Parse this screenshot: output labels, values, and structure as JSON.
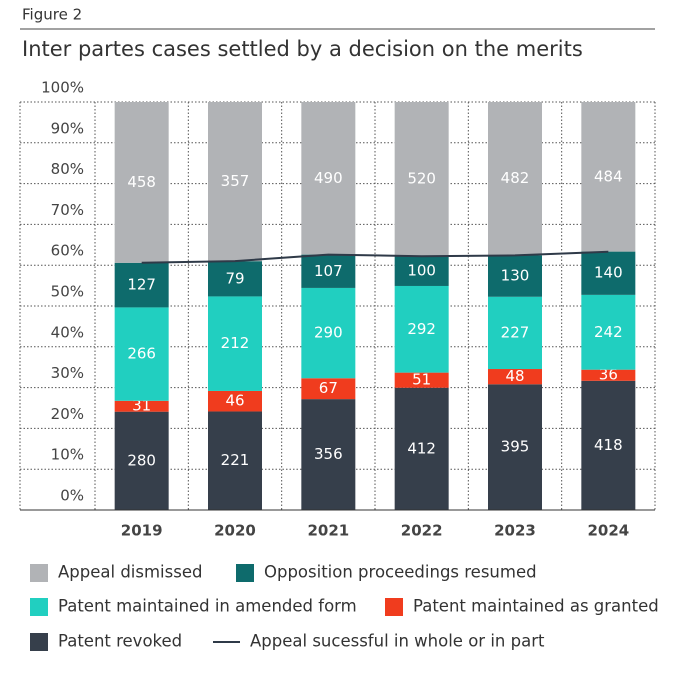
{
  "figure_label": "Figure 2",
  "chart_data": {
    "type": "bar",
    "stacking": "percent",
    "title": "Inter partes cases settled by a decision on the merits",
    "categories": [
      "2019",
      "2020",
      "2021",
      "2022",
      "2023",
      "2024"
    ],
    "series": [
      {
        "name": "Appeal dismissed",
        "color": "#b1b3b6",
        "values": [
          458,
          357,
          490,
          520,
          482,
          484
        ]
      },
      {
        "name": "Opposition proceedings resumed",
        "color": "#0e6b6c",
        "values": [
          127,
          79,
          107,
          100,
          130,
          140
        ]
      },
      {
        "name": "Patent maintained in amended form",
        "color": "#21cfc0",
        "values": [
          266,
          212,
          290,
          292,
          227,
          242
        ]
      },
      {
        "name": "Patent maintained as granted",
        "color": "#f03c1e",
        "values": [
          31,
          46,
          67,
          51,
          48,
          36
        ]
      },
      {
        "name": "Patent revoked",
        "color": "#363f4b",
        "values": [
          280,
          221,
          356,
          412,
          395,
          418
        ]
      }
    ],
    "line": {
      "name": "Appeal sucessful in whole or in part",
      "color": "#2f3a48",
      "values": [
        60.6,
        61.0,
        62.6,
        62.2,
        62.4,
        63.3
      ]
    },
    "ylim": [
      0,
      100
    ],
    "yticks": [
      {
        "value": 0,
        "label": "0%"
      },
      {
        "value": 10,
        "label": "10%"
      },
      {
        "value": 20,
        "label": "20%"
      },
      {
        "value": 30,
        "label": "30%"
      },
      {
        "value": 40,
        "label": "40%"
      },
      {
        "value": 50,
        "label": "50%"
      },
      {
        "value": 60,
        "label": "60%"
      },
      {
        "value": 70,
        "label": "70%"
      },
      {
        "value": 80,
        "label": "80%"
      },
      {
        "value": 90,
        "label": "90%"
      },
      {
        "value": 100,
        "label": "100%"
      }
    ],
    "grid": true
  }
}
